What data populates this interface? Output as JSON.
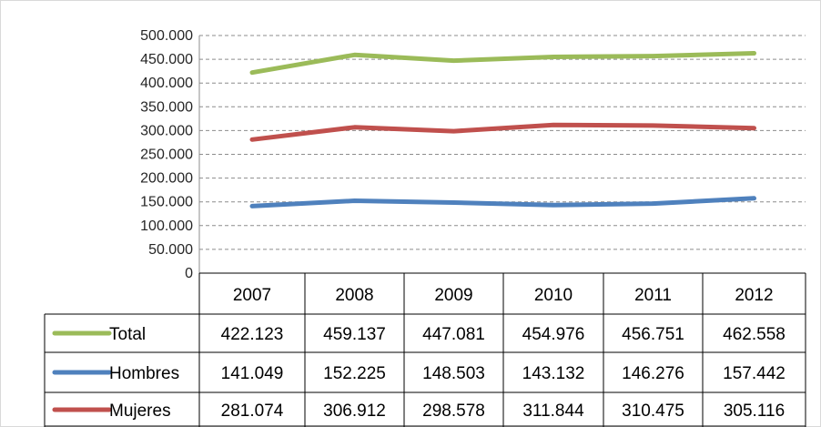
{
  "chart_data": {
    "type": "line",
    "title": "",
    "xlabel": "",
    "ylabel": "",
    "categories": [
      "2007",
      "2008",
      "2009",
      "2010",
      "2011",
      "2012"
    ],
    "y_ticks": [
      "0",
      "50.000",
      "100.000",
      "150.000",
      "200.000",
      "250.000",
      "300.000",
      "350.000",
      "400.000",
      "450.000",
      "500.000"
    ],
    "ylim": [
      0,
      500000
    ],
    "grid": "horizontal dashed",
    "legend": "data table below plot",
    "series": [
      {
        "name": "Total",
        "color": "#9bbb59",
        "values": [
          422123,
          459137,
          447081,
          454976,
          456751,
          462558
        ],
        "labels": [
          "422.123",
          "459.137",
          "447.081",
          "454.976",
          "456.751",
          "462.558"
        ]
      },
      {
        "name": "Hombres",
        "color": "#4f81bd",
        "values": [
          141049,
          152225,
          148503,
          143132,
          146276,
          157442
        ],
        "labels": [
          "141.049",
          "152.225",
          "148.503",
          "143.132",
          "146.276",
          "157.442"
        ]
      },
      {
        "name": "Mujeres",
        "color": "#c0504d",
        "values": [
          281074,
          306912,
          298578,
          311844,
          310475,
          305116
        ],
        "labels": [
          "281.074",
          "306.912",
          "298.578",
          "311.844",
          "310.475",
          "305.116"
        ]
      }
    ]
  }
}
